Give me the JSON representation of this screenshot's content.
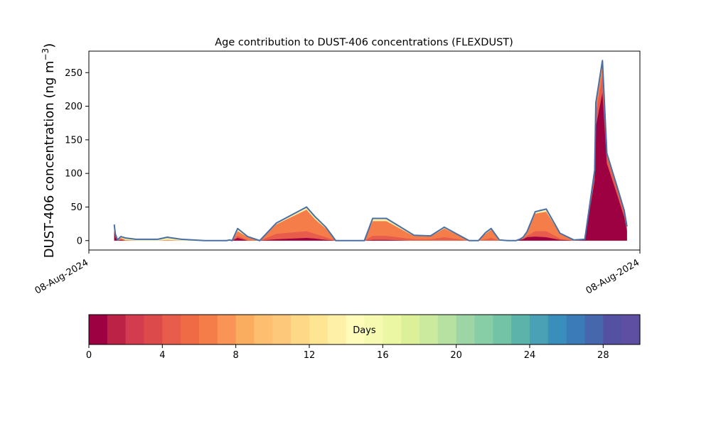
{
  "chart_data": {
    "type": "area",
    "title": "Age contribution to DUST-406 concentrations (FLEXDUST)",
    "ylabel_main": "DUST-406 concentration (ng m",
    "ylabel_sup": "−3",
    "ylabel_close": ")",
    "ylim": [
      -14,
      282
    ],
    "xlim": [
      0,
      1
    ],
    "yticks": [
      0,
      50,
      100,
      150,
      200,
      250
    ],
    "ytick_labels": [
      "0",
      "50",
      "100",
      "150",
      "200",
      "250"
    ],
    "xtick_labels": [
      "08-Aug-2024",
      "08-Aug-2024"
    ],
    "xticks": [
      0,
      1
    ],
    "grid": false,
    "outline_color": "#4a6fa5",
    "x": [
      0.046,
      0.048,
      0.052,
      0.058,
      0.066,
      0.085,
      0.125,
      0.142,
      0.168,
      0.21,
      0.25,
      0.255,
      0.26,
      0.27,
      0.288,
      0.31,
      0.34,
      0.395,
      0.41,
      0.43,
      0.448,
      0.46,
      0.475,
      0.49,
      0.5,
      0.515,
      0.54,
      0.58,
      0.59,
      0.62,
      0.645,
      0.69,
      0.707,
      0.72,
      0.73,
      0.745,
      0.76,
      0.775,
      0.782,
      0.788,
      0.795,
      0.81,
      0.83,
      0.855,
      0.88,
      0.9,
      0.918,
      0.92,
      0.932,
      0.94,
      0.958,
      0.9715,
      0.9765
    ],
    "total": [
      24,
      10,
      1,
      6,
      4,
      2,
      2,
      5,
      2,
      0,
      0,
      1,
      0,
      18,
      6,
      0,
      26,
      50,
      36,
      20,
      0,
      0,
      0,
      0,
      0,
      33,
      33,
      13,
      8,
      7,
      20,
      0,
      0,
      12,
      18,
      1,
      0,
      0,
      2,
      5,
      13,
      43,
      47,
      11,
      1,
      2,
      105,
      205,
      268,
      130,
      82,
      45,
      21
    ],
    "days_1": [
      14,
      5,
      0,
      1,
      0,
      0,
      0,
      0,
      0,
      0,
      0,
      0,
      0,
      4,
      0,
      0,
      2,
      4,
      3,
      1,
      0,
      0,
      0,
      0,
      0,
      1,
      1,
      0,
      0,
      0,
      0,
      0,
      0,
      0,
      0,
      0,
      0,
      0,
      1,
      2,
      5,
      6,
      5,
      1,
      0,
      1,
      90,
      170,
      220,
      115,
      70,
      35,
      14
    ],
    "days_4": [
      4,
      2,
      0,
      1,
      0,
      0,
      0,
      0,
      0,
      0,
      0,
      0,
      0,
      3,
      1,
      0,
      8,
      10,
      7,
      4,
      0,
      0,
      0,
      0,
      0,
      6,
      6,
      3,
      2,
      2,
      5,
      0,
      0,
      2,
      4,
      0,
      0,
      0,
      0,
      1,
      2,
      8,
      9,
      2,
      0,
      0,
      10,
      20,
      25,
      10,
      8,
      6,
      4
    ],
    "days_8": [
      3,
      1,
      0,
      2,
      1,
      0,
      0,
      1,
      0,
      0,
      0,
      0,
      0,
      7,
      4,
      0,
      14,
      32,
      22,
      13,
      0,
      0,
      0,
      0,
      0,
      22,
      22,
      8,
      5,
      4,
      13,
      0,
      0,
      8,
      12,
      0,
      0,
      0,
      0,
      1,
      4,
      26,
      29,
      7,
      0,
      0,
      4,
      10,
      15,
      3,
      3,
      2,
      1
    ],
    "days_16": [
      2,
      1,
      1,
      1,
      2,
      1,
      1,
      3,
      1,
      0,
      0,
      1,
      0,
      3,
      1,
      0,
      2,
      3,
      3,
      1,
      0,
      0,
      0,
      0,
      0,
      3,
      3,
      1,
      1,
      1,
      1,
      0,
      0,
      1,
      1,
      1,
      0,
      0,
      1,
      1,
      2,
      2,
      3,
      1,
      1,
      1,
      1,
      4,
      7,
      1,
      1,
      1,
      1
    ],
    "days_30": [
      1,
      1,
      0,
      1,
      1,
      1,
      1,
      1,
      1,
      0,
      0,
      0,
      0,
      1,
      0,
      0,
      0,
      1,
      1,
      1,
      0,
      0,
      0,
      0,
      0,
      1,
      1,
      1,
      0,
      0,
      1,
      0,
      0,
      1,
      1,
      0,
      0,
      0,
      0,
      0,
      0,
      1,
      1,
      0,
      0,
      0,
      0,
      1,
      1,
      1,
      0,
      1,
      1
    ],
    "colorbar": {
      "label": "Days",
      "min": 0,
      "max": 30,
      "ticks": [
        0,
        4,
        8,
        12,
        16,
        20,
        24,
        28
      ],
      "tick_labels": [
        "0",
        "4",
        "8",
        "12",
        "16",
        "20",
        "24",
        "28"
      ],
      "colors": [
        "#9e0142",
        "#bc2246",
        "#d23c4e",
        "#dd4a4c",
        "#e75c4a",
        "#ef6b46",
        "#f57d4a",
        "#f99456",
        "#fbad5f",
        "#fdbf6f",
        "#fec87a",
        "#fed886",
        "#fee593",
        "#fef0a6",
        "#fffbb8",
        "#f6fab0",
        "#ebf7a2",
        "#dcf09a",
        "#ccea9e",
        "#b6e1a0",
        "#9dd5a4",
        "#87cda5",
        "#73c3a6",
        "#5cb3a9",
        "#4aa0b4",
        "#3a8ebb",
        "#3b7bb8",
        "#4767ad",
        "#5451a2",
        "#5e4fa2"
      ],
      "layer_colors": {
        "days_1": "#9e0142",
        "days_4": "#e75c4a",
        "days_8": "#f57d4a",
        "days_16": "#fef0a6",
        "days_30": "#73c3a6"
      }
    }
  }
}
